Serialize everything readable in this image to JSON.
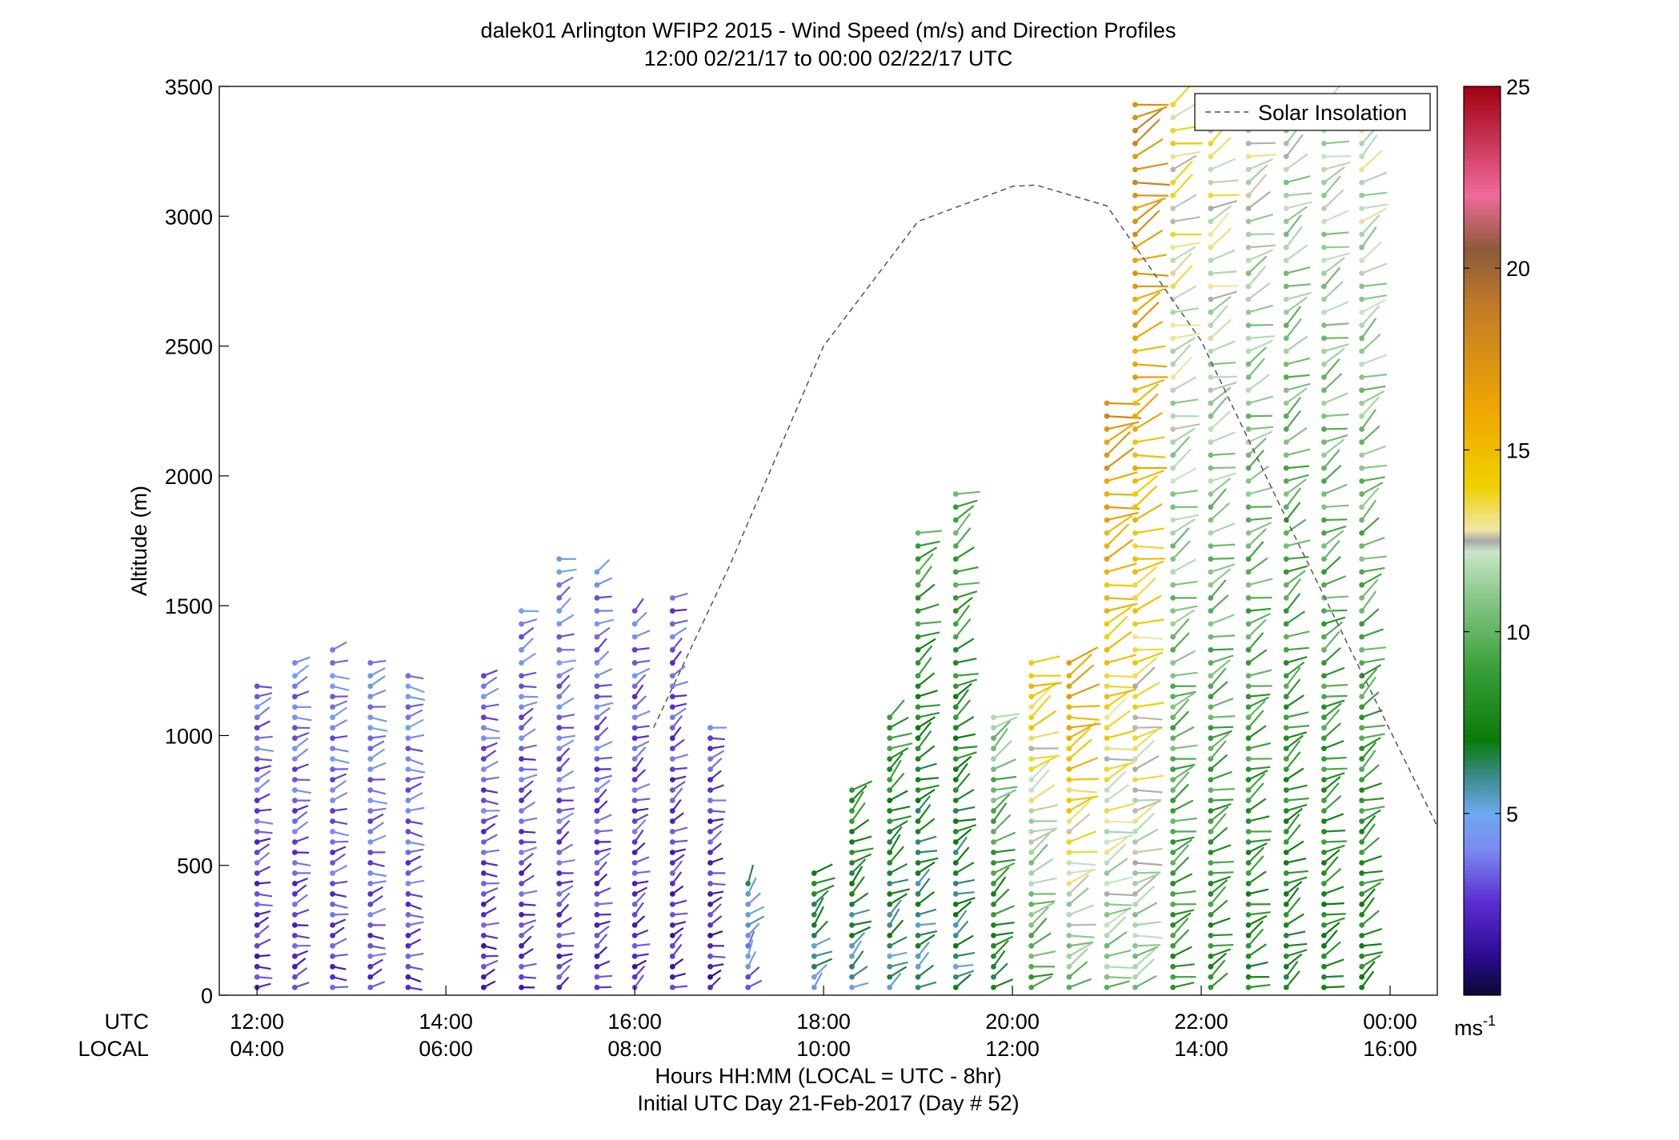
{
  "chart_data": {
    "type": "scatter",
    "subtype": "wind-barb-profiles",
    "title": "dalek01 Arlington WFIP2 2015 - Wind Speed (m/s) and Direction Profiles",
    "subtitle": "12:00 02/21/17 to 00:00 02/22/17  UTC",
    "ylabel": "Altitude (m)",
    "xlabel": "Hours HH:MM  (LOCAL = UTC - 8hr)",
    "xlabel2": "Initial UTC Day 21-Feb-2017 (Day # 52)",
    "x_row_labels": [
      "UTC",
      "LOCAL"
    ],
    "xlim": [
      11.6,
      24.5
    ],
    "ylim": [
      0,
      3500
    ],
    "yticks": [
      0,
      500,
      1000,
      1500,
      2000,
      2500,
      3000,
      3500
    ],
    "xticks": [
      {
        "utc_hour": 12,
        "utc": "12:00",
        "local": "04:00"
      },
      {
        "utc_hour": 14,
        "utc": "14:00",
        "local": "06:00"
      },
      {
        "utc_hour": 16,
        "utc": "16:00",
        "local": "08:00"
      },
      {
        "utc_hour": 18,
        "utc": "18:00",
        "local": "10:00"
      },
      {
        "utc_hour": 20,
        "utc": "20:00",
        "local": "12:00"
      },
      {
        "utc_hour": 22,
        "utc": "22:00",
        "local": "14:00"
      },
      {
        "utc_hour": 24,
        "utc": "00:00",
        "local": "16:00"
      }
    ],
    "grid": false,
    "legend": {
      "position": "top-right",
      "entries": [
        "Solar Insolation"
      ]
    },
    "colorbar": {
      "label": "ms",
      "label_superscript": "-1",
      "range": [
        0,
        25
      ],
      "ticks": [
        5,
        10,
        15,
        20,
        25
      ],
      "stops": [
        {
          "v": 0,
          "c": "#0a0a33"
        },
        {
          "v": 1,
          "c": "#2a0a8c"
        },
        {
          "v": 2.5,
          "c": "#5a2ad0"
        },
        {
          "v": 4,
          "c": "#7a8af0"
        },
        {
          "v": 5,
          "c": "#6fa8f0"
        },
        {
          "v": 6,
          "c": "#3c8c8c"
        },
        {
          "v": 7,
          "c": "#0a7a0a"
        },
        {
          "v": 9,
          "c": "#3aa03a"
        },
        {
          "v": 11,
          "c": "#8cc88c"
        },
        {
          "v": 12.2,
          "c": "#c8e6c8"
        },
        {
          "v": 12.5,
          "c": "#a8a8a8"
        },
        {
          "v": 12.8,
          "c": "#f0e6a8"
        },
        {
          "v": 14,
          "c": "#f0d000"
        },
        {
          "v": 16,
          "c": "#f0a800"
        },
        {
          "v": 19,
          "c": "#c07a28"
        },
        {
          "v": 20.5,
          "c": "#8c5a3a"
        },
        {
          "v": 22,
          "c": "#f06a9a"
        },
        {
          "v": 25,
          "c": "#a00010"
        }
      ]
    },
    "solar_insolation": {
      "name": "Solar Insolation",
      "line": "dashed",
      "color": "#555555",
      "x": [
        16.2,
        17,
        18,
        19,
        20,
        20.25,
        21,
        22,
        23,
        24.5
      ],
      "y": [
        1030,
        1650,
        2500,
        2980,
        3115,
        3120,
        3040,
        2520,
        1760,
        650
      ]
    },
    "profiles": [
      {
        "utc_hour": 12.0,
        "top_m": 1200,
        "speed_m_s": 3.0,
        "direction_deg": 255
      },
      {
        "utc_hour": 12.4,
        "top_m": 1280,
        "speed_m_s": 3.2,
        "direction_deg": 255
      },
      {
        "utc_hour": 12.8,
        "top_m": 1330,
        "speed_m_s": 3.4,
        "direction_deg": 260
      },
      {
        "utc_hour": 13.2,
        "top_m": 1300,
        "speed_m_s": 3.6,
        "direction_deg": 260
      },
      {
        "utc_hour": 13.6,
        "top_m": 1250,
        "speed_m_s": 3.4,
        "direction_deg": 265
      },
      {
        "utc_hour": 14.4,
        "top_m": 1250,
        "speed_m_s": 3.0,
        "direction_deg": 260
      },
      {
        "utc_hour": 14.8,
        "top_m": 1500,
        "speed_m_s": 3.2,
        "direction_deg": 250
      },
      {
        "utc_hour": 15.2,
        "top_m": 1700,
        "speed_m_s": 3.4,
        "direction_deg": 245
      },
      {
        "utc_hour": 15.6,
        "top_m": 1650,
        "speed_m_s": 3.2,
        "direction_deg": 245
      },
      {
        "utc_hour": 16.0,
        "top_m": 1500,
        "speed_m_s": 3.0,
        "direction_deg": 240
      },
      {
        "utc_hour": 16.4,
        "top_m": 1560,
        "speed_m_s": 2.8,
        "direction_deg": 240
      },
      {
        "utc_hour": 16.8,
        "top_m": 1050,
        "speed_m_s": 2.6,
        "direction_deg": 250
      },
      {
        "utc_hour": 17.2,
        "top_m": 450,
        "speed_m_s": 4.5,
        "direction_deg": 220
      },
      {
        "utc_hour": 17.9,
        "top_m": 500,
        "speed_m_s": 6.5,
        "direction_deg": 230
      },
      {
        "utc_hour": 18.3,
        "top_m": 800,
        "speed_m_s": 7.0,
        "direction_deg": 235
      },
      {
        "utc_hour": 18.7,
        "top_m": 1100,
        "speed_m_s": 7.3,
        "direction_deg": 235
      },
      {
        "utc_hour": 19.0,
        "top_m": 1800,
        "speed_m_s": 7.5,
        "direction_deg": 240
      },
      {
        "utc_hour": 19.4,
        "top_m": 1950,
        "speed_m_s": 7.8,
        "direction_deg": 240
      },
      {
        "utc_hour": 19.8,
        "top_m": 1100,
        "speed_m_s": 9.0,
        "direction_deg": 240
      },
      {
        "utc_hour": 20.2,
        "top_m": 1300,
        "speed_m_s": 12.0,
        "direction_deg": 245
      },
      {
        "utc_hour": 20.6,
        "top_m": 1300,
        "speed_m_s": 13.5,
        "direction_deg": 250
      },
      {
        "utc_hour": 21.0,
        "top_m": 2300,
        "speed_m_s": 14.0,
        "direction_deg": 250
      },
      {
        "utc_hour": 21.3,
        "top_m": 3450,
        "speed_m_s": 14.5,
        "direction_deg": 250
      },
      {
        "utc_hour": 21.7,
        "top_m": 3450,
        "speed_m_s": 11.0,
        "direction_deg": 245
      },
      {
        "utc_hour": 22.1,
        "top_m": 3350,
        "speed_m_s": 10.5,
        "direction_deg": 245
      },
      {
        "utc_hour": 22.5,
        "top_m": 3400,
        "speed_m_s": 10.0,
        "direction_deg": 245
      },
      {
        "utc_hour": 22.9,
        "top_m": 3400,
        "speed_m_s": 9.5,
        "direction_deg": 240
      },
      {
        "utc_hour": 23.3,
        "top_m": 3450,
        "speed_m_s": 9.8,
        "direction_deg": 245
      },
      {
        "utc_hour": 23.7,
        "top_m": 3400,
        "speed_m_s": 10.0,
        "direction_deg": 240
      }
    ]
  }
}
